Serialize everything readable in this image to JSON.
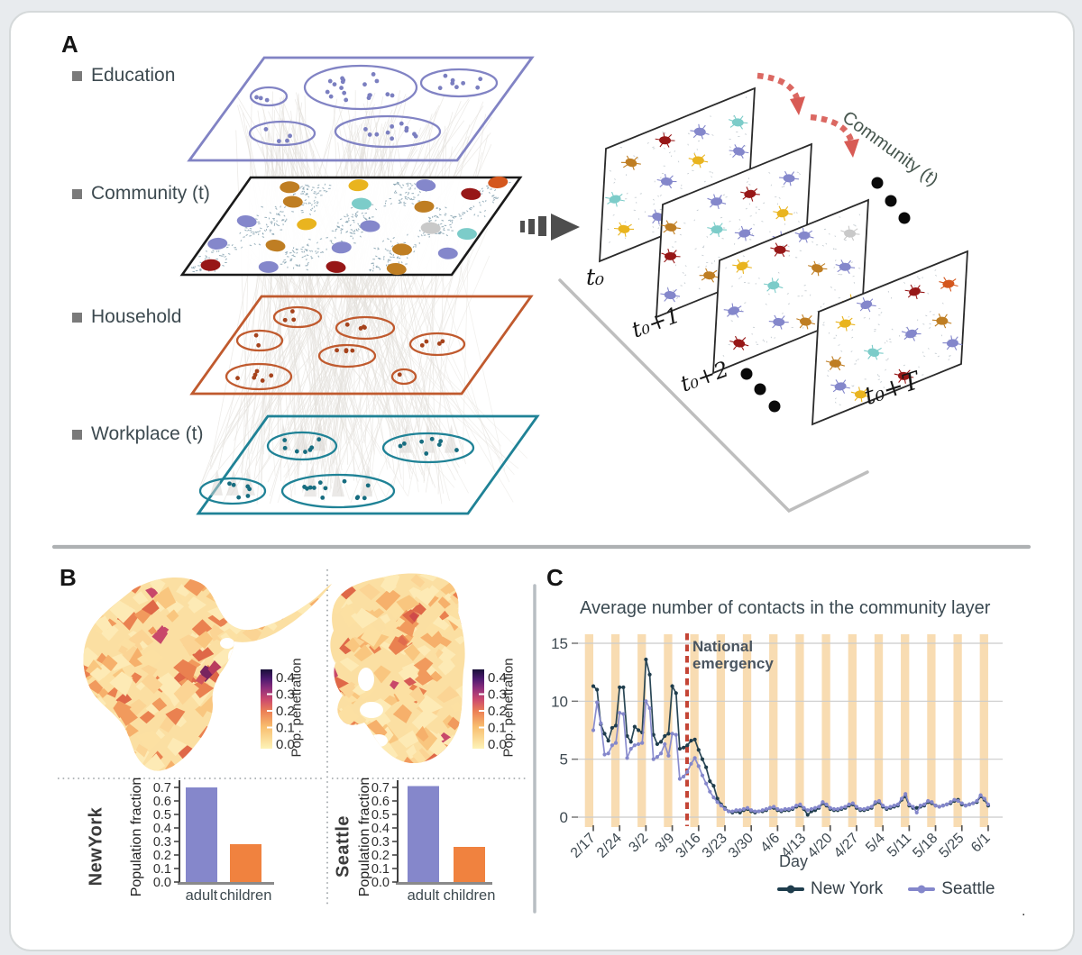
{
  "panelA": {
    "label": "A",
    "layers": [
      {
        "label": "Education",
        "color": "#8183c4"
      },
      {
        "label": "Community (t)",
        "color": "#1a1a1a"
      },
      {
        "label": "Household",
        "color": "#c05a2e"
      },
      {
        "label": "Workplace (t)",
        "color": "#1f8296"
      }
    ],
    "sequence": {
      "label": "Community (t)",
      "frames": [
        "t₀",
        "t₀+1",
        "t₀+2",
        "t₀+T"
      ]
    },
    "node_palette": {
      "purple": "#8487cb",
      "dark_red": "#971717",
      "gold": "#e9b41f",
      "dark_gold": "#bf7e23",
      "teal": "#7cccc9",
      "gray": "#c9c9c9",
      "orange": "#d4571e"
    }
  },
  "panelB": {
    "label": "B",
    "colorbar": {
      "label": "Pop. penetration",
      "ticks": [
        "0.4",
        "0.3",
        "0.2",
        "0.1",
        "0.0"
      ]
    },
    "ylabel": "Population fraction",
    "cities": [
      "NewYork",
      "Seattle"
    ]
  },
  "panelC": {
    "label": "C",
    "title": "Average number of contacts in the community layer",
    "annotation": "National emergency",
    "xlabel": "Day",
    "vline_color": "#c44536",
    "band_color": "#f8dcb2"
  },
  "misc": {
    "trailing_dot": "."
  },
  "chart_data": [
    {
      "type": "bar",
      "title": "NewYork population fraction",
      "categories": [
        "adult",
        "children"
      ],
      "values": [
        0.7,
        0.28
      ],
      "colors": [
        "#8587cb",
        "#f0823f"
      ],
      "ylabel": "Population fraction",
      "yticks": [
        "0.0",
        "0.1",
        "0.2",
        "0.3",
        "0.4",
        "0.5",
        "0.6",
        "0.7"
      ],
      "ylim": [
        0,
        0.75
      ]
    },
    {
      "type": "bar",
      "title": "Seattle population fraction",
      "categories": [
        "adult",
        "children"
      ],
      "values": [
        0.71,
        0.26
      ],
      "colors": [
        "#8587cb",
        "#f0823f"
      ],
      "ylabel": "Population fraction",
      "yticks": [
        "0.0",
        "0.1",
        "0.2",
        "0.3",
        "0.4",
        "0.5",
        "0.6",
        "0.7"
      ],
      "ylim": [
        0,
        0.75
      ]
    },
    {
      "type": "line",
      "title": "Average number of contacts in the community layer",
      "xlabel": "Day",
      "ylim": [
        0,
        15.5
      ],
      "yticks": [
        0,
        5,
        10,
        15
      ],
      "x_ticklabels": [
        "2/17",
        "2/24",
        "3/2",
        "3/9",
        "3/16",
        "3/23",
        "3/30",
        "4/6",
        "4/13",
        "4/20",
        "4/27",
        "5/4",
        "5/11",
        "5/18",
        "5/25",
        "6/1"
      ],
      "x_resolution": "daily",
      "n_points": 106,
      "bands": {
        "type": "weekend",
        "count": 16,
        "color": "#f8dcb2"
      },
      "national_emergency": {
        "label": "National emergency",
        "day_index": 25,
        "date": "3/13",
        "color": "#c44536"
      },
      "legend_position": "bottom-right",
      "series": [
        {
          "name": "New York",
          "color": "#1f3d4d",
          "values": [
            11.3,
            11.0,
            8.0,
            7.2,
            6.6,
            7.7,
            7.9,
            11.2,
            11.2,
            7.0,
            6.5,
            7.8,
            7.5,
            7.3,
            13.6,
            12.3,
            7.1,
            6.3,
            6.5,
            7.0,
            7.2,
            11.3,
            10.7,
            5.9,
            6.0,
            6.2,
            6.6,
            6.7,
            5.8,
            5.0,
            4.3,
            3.1,
            2.7,
            1.6,
            1.1,
            0.8,
            0.5,
            0.4,
            0.5,
            0.4,
            0.6,
            0.7,
            0.5,
            0.4,
            0.5,
            0.5,
            0.6,
            0.8,
            0.8,
            0.6,
            0.5,
            0.6,
            0.6,
            0.7,
            0.9,
            1.0,
            0.7,
            0.2,
            0.5,
            0.6,
            0.8,
            1.2,
            1.0,
            0.7,
            0.6,
            0.6,
            0.7,
            0.8,
            1.0,
            1.1,
            0.8,
            0.6,
            0.6,
            0.7,
            0.8,
            1.2,
            1.3,
            0.9,
            0.7,
            0.8,
            0.9,
            1.0,
            1.5,
            1.8,
            1.0,
            0.8,
            0.8,
            0.9,
            1.0,
            1.3,
            1.2,
            1.0,
            0.9,
            1.0,
            1.1,
            1.2,
            1.4,
            1.5,
            1.1,
            1.0,
            1.1,
            1.2,
            1.3,
            1.8,
            1.5,
            1.0
          ]
        },
        {
          "name": "Seattle",
          "color": "#8487cb",
          "values": [
            7.5,
            9.9,
            8.1,
            5.4,
            5.5,
            6.2,
            6.4,
            9.0,
            8.9,
            5.1,
            5.9,
            6.2,
            6.3,
            6.4,
            10.0,
            9.4,
            5.0,
            5.2,
            5.5,
            6.3,
            5.3,
            7.2,
            7.1,
            3.3,
            3.5,
            3.9,
            4.6,
            5.1,
            4.4,
            3.6,
            2.9,
            2.2,
            1.7,
            1.3,
            1.0,
            0.7,
            0.5,
            0.5,
            0.6,
            0.6,
            0.7,
            0.8,
            0.6,
            0.5,
            0.5,
            0.6,
            0.7,
            0.8,
            0.9,
            0.7,
            0.6,
            0.7,
            0.7,
            0.8,
            1.0,
            1.1,
            0.8,
            0.6,
            0.7,
            0.8,
            0.9,
            1.3,
            1.1,
            0.8,
            0.7,
            0.7,
            0.8,
            0.9,
            1.1,
            1.2,
            0.9,
            0.7,
            0.7,
            0.8,
            0.9,
            1.3,
            1.4,
            1.0,
            0.8,
            0.9,
            1.0,
            1.1,
            1.6,
            2.0,
            1.1,
            0.9,
            0.4,
            1.0,
            1.1,
            1.4,
            1.3,
            1.0,
            0.9,
            1.0,
            1.1,
            1.3,
            1.5,
            1.4,
            1.2,
            1.0,
            1.1,
            1.2,
            1.4,
            1.9,
            1.6,
            1.1
          ]
        }
      ]
    }
  ]
}
